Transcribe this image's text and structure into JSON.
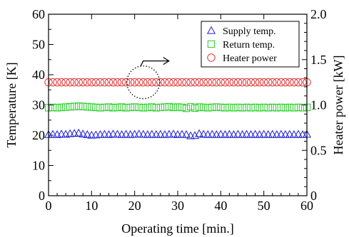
{
  "chart_data": {
    "type": "scatter",
    "title": "",
    "xlabel": "Operating time [min.]",
    "ylabel": "Temperature [K]",
    "y2label": "Heater power [kW]",
    "xlim": [
      0,
      60
    ],
    "ylim": [
      0,
      60
    ],
    "y2lim": [
      0,
      2.0
    ],
    "xticks": [
      "0",
      "10",
      "20",
      "30",
      "40",
      "50",
      "60"
    ],
    "yticks": [
      "0",
      "10",
      "20",
      "30",
      "40",
      "50",
      "60"
    ],
    "y2ticks": [
      "0",
      "0.5",
      "1.0",
      "1.5",
      "2.0"
    ],
    "grid": false,
    "legend_position": "top-right",
    "x": [
      0,
      1,
      2,
      3,
      4,
      5,
      6,
      7,
      8,
      9,
      10,
      11,
      12,
      13,
      14,
      15,
      16,
      17,
      18,
      19,
      20,
      21,
      22,
      23,
      24,
      25,
      26,
      27,
      28,
      29,
      30,
      31,
      32,
      33,
      34,
      35,
      36,
      37,
      38,
      39,
      40,
      41,
      42,
      43,
      44,
      45,
      46,
      47,
      48,
      49,
      50,
      51,
      52,
      53,
      54,
      55,
      56,
      57,
      58,
      59,
      60
    ],
    "series": [
      {
        "name": "Supply temp.",
        "axis": "left",
        "marker": "triangle",
        "color": "#1f1fd6",
        "values": [
          20.2,
          20.3,
          20.2,
          20.4,
          20.3,
          20.5,
          20.6,
          20.7,
          20.4,
          20.2,
          20.0,
          20.1,
          20.2,
          20.3,
          20.2,
          20.4,
          20.3,
          20.2,
          20.3,
          20.2,
          20.3,
          20.4,
          20.3,
          20.2,
          20.3,
          20.2,
          20.3,
          20.2,
          20.3,
          20.4,
          20.2,
          20.3,
          20.2,
          19.8,
          19.9,
          20.5,
          20.3,
          20.2,
          20.3,
          20.2,
          20.3,
          20.2,
          20.3,
          20.2,
          20.3,
          20.2,
          20.3,
          20.2,
          20.3,
          20.2,
          20.3,
          20.2,
          20.3,
          20.2,
          20.3,
          20.2,
          20.3,
          20.2,
          20.3,
          20.2,
          20.3
        ]
      },
      {
        "name": "Return temp.",
        "axis": "left",
        "marker": "square",
        "color": "#22cc22",
        "values": [
          29.1,
          29.2,
          29.1,
          29.2,
          29.3,
          29.4,
          29.5,
          29.6,
          29.5,
          29.4,
          29.3,
          29.2,
          29.1,
          29.2,
          29.3,
          29.1,
          29.2,
          29.3,
          29.1,
          29.2,
          29.3,
          29.2,
          29.1,
          29.2,
          29.3,
          29.1,
          29.2,
          29.3,
          29.4,
          29.2,
          29.3,
          29.2,
          28.9,
          29.4,
          29.0,
          29.3,
          29.2,
          29.1,
          29.2,
          29.3,
          29.2,
          29.1,
          29.2,
          29.1,
          29.2,
          29.1,
          29.2,
          29.1,
          29.2,
          29.1,
          29.2,
          29.1,
          29.2,
          29.1,
          29.2,
          29.1,
          29.2,
          29.1,
          29.2,
          29.1,
          29.2
        ]
      },
      {
        "name": "Heater power",
        "axis": "right",
        "marker": "circle",
        "color": "#e03030",
        "values": [
          1.25,
          1.25,
          1.25,
          1.25,
          1.25,
          1.25,
          1.25,
          1.25,
          1.25,
          1.25,
          1.25,
          1.25,
          1.25,
          1.25,
          1.25,
          1.25,
          1.25,
          1.25,
          1.25,
          1.25,
          1.25,
          1.25,
          1.25,
          1.25,
          1.25,
          1.25,
          1.25,
          1.25,
          1.25,
          1.25,
          1.25,
          1.25,
          1.25,
          1.25,
          1.25,
          1.25,
          1.25,
          1.25,
          1.25,
          1.25,
          1.25,
          1.25,
          1.25,
          1.25,
          1.25,
          1.25,
          1.25,
          1.25,
          1.25,
          1.25,
          1.25,
          1.25,
          1.25,
          1.25,
          1.25,
          1.25,
          1.25,
          1.25,
          1.25,
          1.25,
          1.25
        ]
      }
    ],
    "annotation": {
      "type": "dotted-circle-with-arrow",
      "target_series": "Heater power",
      "circle_center_x": 22,
      "circle_center_y": 37.5,
      "arrow_points_to": "right-axis"
    }
  }
}
